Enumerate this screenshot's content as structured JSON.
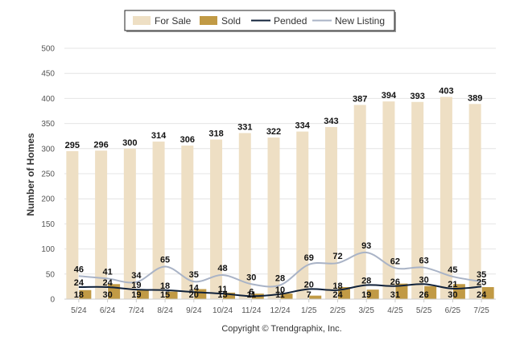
{
  "chart_data": {
    "type": "bar",
    "categories": [
      "5/24",
      "6/24",
      "7/24",
      "8/24",
      "9/24",
      "10/24",
      "11/24",
      "12/24",
      "1/25",
      "2/25",
      "3/25",
      "4/25",
      "5/25",
      "6/25",
      "7/25"
    ],
    "series": [
      {
        "name": "For Sale",
        "kind": "bar",
        "color": "#eedfc4",
        "values": [
          295,
          296,
          300,
          314,
          306,
          318,
          331,
          322,
          334,
          343,
          387,
          394,
          393,
          403,
          389
        ]
      },
      {
        "name": "Sold",
        "kind": "bar",
        "color": "#c19a45",
        "values": [
          18,
          30,
          19,
          15,
          20,
          13,
          11,
          11,
          7,
          24,
          19,
          31,
          26,
          30,
          24
        ]
      },
      {
        "name": "Pended",
        "kind": "line",
        "color": "#10213a",
        "values": [
          24,
          24,
          19,
          18,
          14,
          11,
          6,
          10,
          20,
          18,
          28,
          26,
          30,
          21,
          25
        ]
      },
      {
        "name": "New Listing",
        "kind": "line",
        "color": "#a9b3c6",
        "values": [
          46,
          41,
          34,
          65,
          35,
          48,
          30,
          28,
          69,
          72,
          93,
          62,
          63,
          45,
          35
        ]
      }
    ],
    "ylabel": "Number of Homes",
    "ylim": [
      0,
      500
    ],
    "yticks": [
      0,
      50,
      100,
      150,
      200,
      250,
      300,
      350,
      400,
      450,
      500
    ],
    "grid": true,
    "legend_position": "top-center"
  },
  "credit": "Copyright © Trendgraphix, Inc."
}
